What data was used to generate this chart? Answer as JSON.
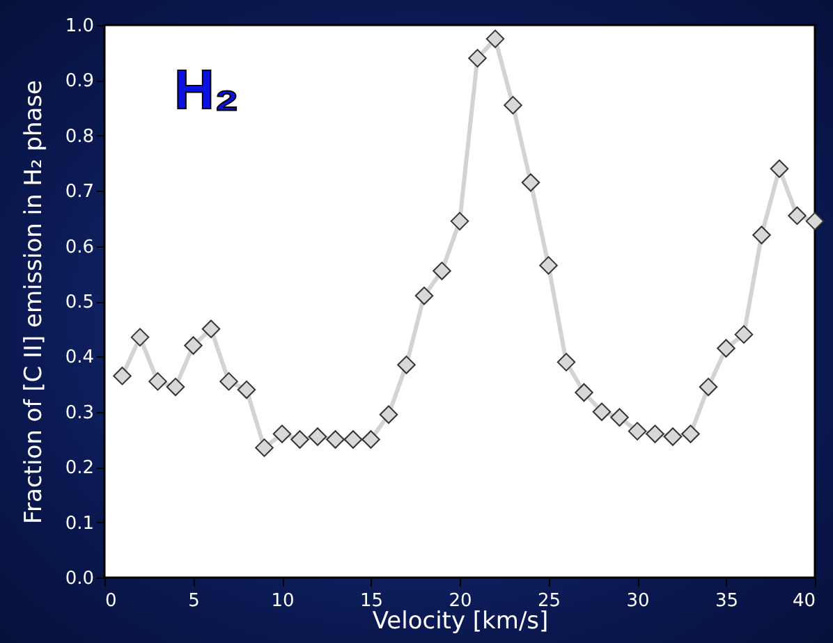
{
  "chart_data": {
    "type": "line",
    "xlabel": "Velocity [km/s]",
    "ylabel": "Fraction of [C II] emission in H₂ phase",
    "annotations": [
      "H₂"
    ],
    "x": [
      1,
      2,
      3,
      4,
      5,
      6,
      7,
      8,
      9,
      10,
      11,
      12,
      13,
      14,
      15,
      16,
      17,
      18,
      19,
      20,
      21,
      22,
      23,
      24,
      25,
      26,
      27,
      28,
      29,
      30,
      31,
      32,
      33,
      34,
      35,
      36,
      37,
      38,
      39,
      40
    ],
    "series": [
      {
        "color": "#d3d3d3",
        "values": [
          0.365,
          0.435,
          0.355,
          0.345,
          0.42,
          0.45,
          0.355,
          0.34,
          0.235,
          0.26,
          0.25,
          0.255,
          0.25,
          0.25,
          0.25,
          0.295,
          0.385,
          0.51,
          0.555,
          0.645,
          0.94,
          0.975,
          0.855,
          0.715,
          0.565,
          0.39,
          0.335,
          0.3,
          0.29,
          0.265,
          0.26,
          0.255,
          0.26,
          0.345,
          0.415,
          0.44,
          0.62,
          0.74,
          0.655,
          0.645
        ]
      }
    ],
    "xlim": [
      0,
      40
    ],
    "xticks": [
      0,
      5,
      10,
      15,
      20,
      25,
      30,
      35,
      40
    ],
    "ylim": [
      0,
      1
    ],
    "yticks": [
      {
        "value": 0,
        "label": "0.0"
      },
      {
        "value": 0.1,
        "label": "0.1"
      },
      {
        "value": 0.2,
        "label": "0.2"
      },
      {
        "value": 0.3,
        "label": "0.3"
      },
      {
        "value": 0.4,
        "label": "0.4"
      },
      {
        "value": 0.5,
        "label": "0.5"
      },
      {
        "value": 0.6,
        "label": "0.6"
      },
      {
        "value": 0.7,
        "label": "0.7"
      },
      {
        "value": 0.8,
        "label": "0.8"
      },
      {
        "value": 0.9,
        "label": "0.9"
      },
      {
        "value": 1,
        "label": "1.0"
      }
    ],
    "marker": "diamond",
    "grid": false
  }
}
